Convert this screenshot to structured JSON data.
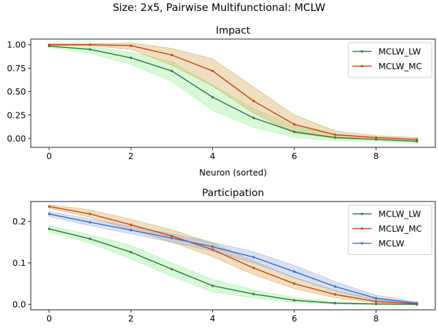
{
  "figure": {
    "suptitle": "Size: 2x5, Pairwise Multifunctional: MCLW"
  },
  "chart_data": [
    {
      "type": "line",
      "title": "Impact",
      "xlabel": "Neuron (sorted)",
      "ylabel": "",
      "x": [
        0,
        1,
        2,
        3,
        4,
        5,
        6,
        7,
        8,
        9
      ],
      "xlim": [
        -0.45,
        9.45
      ],
      "ylim": [
        -0.095,
        1.06
      ],
      "xticks": [
        0,
        2,
        4,
        6,
        8
      ],
      "xtick_labels": [
        "0",
        "2",
        "4",
        "6",
        "8"
      ],
      "yticks": [
        0.0,
        0.25,
        0.5,
        0.75,
        1.0
      ],
      "ytick_labels": [
        "0.00",
        "0.25",
        "0.50",
        "0.75",
        "1.00"
      ],
      "grid": false,
      "legend_position": "top-right",
      "series": [
        {
          "name": "MCLW_LW",
          "color": "#3a7d44",
          "fill_color": "#90ee90",
          "values": [
            0.985,
            0.95,
            0.86,
            0.72,
            0.44,
            0.22,
            0.07,
            0.01,
            -0.01,
            -0.03
          ],
          "lower": [
            0.97,
            0.91,
            0.79,
            0.61,
            0.3,
            0.12,
            0.01,
            -0.02,
            -0.03,
            -0.05
          ],
          "upper": [
            1.0,
            0.98,
            0.92,
            0.82,
            0.57,
            0.32,
            0.13,
            0.04,
            0.01,
            -0.01
          ]
        },
        {
          "name": "MCLW_MC",
          "color": "#cc4c1c",
          "fill_color": "#d2a24a",
          "values": [
            1.0,
            1.0,
            0.99,
            0.89,
            0.72,
            0.4,
            0.15,
            0.04,
            0.01,
            -0.01
          ],
          "lower": [
            0.99,
            0.99,
            0.95,
            0.78,
            0.56,
            0.27,
            0.06,
            0.0,
            -0.01,
            -0.03
          ],
          "upper": [
            1.01,
            1.01,
            1.02,
            0.96,
            0.85,
            0.55,
            0.25,
            0.08,
            0.03,
            0.01
          ]
        }
      ]
    },
    {
      "type": "line",
      "title": "Participation",
      "xlabel": "",
      "ylabel": "",
      "x": [
        0,
        1,
        2,
        3,
        4,
        5,
        6,
        7,
        8,
        9
      ],
      "xlim": [
        -0.45,
        9.45
      ],
      "ylim": [
        -0.013,
        0.248
      ],
      "xticks": [
        0,
        2,
        4,
        6,
        8
      ],
      "xtick_labels": [
        "0",
        "2",
        "4",
        "6",
        "8"
      ],
      "yticks": [
        0.0,
        0.1,
        0.2
      ],
      "ytick_labels": [
        "0.0",
        "0.1",
        "0.2"
      ],
      "grid": false,
      "legend_position": "top-right",
      "series": [
        {
          "name": "MCLW_LW",
          "color": "#3a7d44",
          "fill_color": "#90ee90",
          "values": [
            0.182,
            0.158,
            0.126,
            0.085,
            0.045,
            0.025,
            0.01,
            0.003,
            0.001,
            0.0
          ],
          "lower": [
            0.175,
            0.148,
            0.11,
            0.068,
            0.03,
            0.016,
            0.005,
            0.001,
            0.0,
            0.0
          ],
          "upper": [
            0.19,
            0.168,
            0.142,
            0.1,
            0.06,
            0.035,
            0.016,
            0.006,
            0.002,
            0.001
          ]
        },
        {
          "name": "MCLW_MC",
          "color": "#cc4c1c",
          "fill_color": "#d2a24a",
          "values": [
            0.236,
            0.218,
            0.192,
            0.165,
            0.132,
            0.088,
            0.05,
            0.024,
            0.007,
            0.002
          ],
          "lower": [
            0.232,
            0.21,
            0.18,
            0.15,
            0.115,
            0.072,
            0.038,
            0.016,
            0.004,
            0.0
          ],
          "upper": [
            0.24,
            0.228,
            0.205,
            0.18,
            0.148,
            0.105,
            0.065,
            0.034,
            0.012,
            0.004
          ]
        },
        {
          "name": "MCLW",
          "color": "#4472c4",
          "fill_color": "#8fa8e0",
          "values": [
            0.218,
            0.198,
            0.179,
            0.16,
            0.139,
            0.114,
            0.079,
            0.043,
            0.015,
            0.003
          ],
          "lower": [
            0.212,
            0.19,
            0.17,
            0.15,
            0.128,
            0.1,
            0.064,
            0.032,
            0.01,
            0.001
          ],
          "upper": [
            0.224,
            0.206,
            0.188,
            0.17,
            0.15,
            0.127,
            0.094,
            0.055,
            0.022,
            0.006
          ]
        }
      ]
    }
  ]
}
